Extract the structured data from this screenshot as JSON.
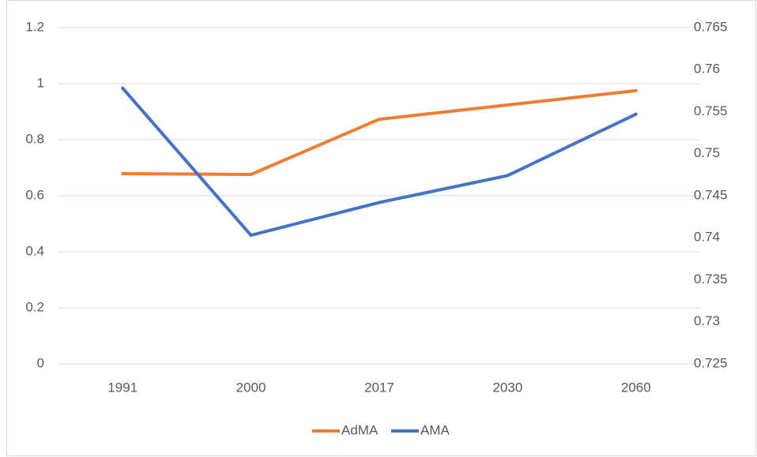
{
  "chart_data": {
    "type": "line",
    "categories": [
      "1991",
      "2000",
      "2017",
      "2030",
      "2060"
    ],
    "series": [
      {
        "name": "AdMA",
        "color": "#ed7d31",
        "values": [
          0.679,
          0.676,
          0.873,
          0.924,
          0.975
        ]
      },
      {
        "name": "AMA",
        "color": "#4472c4",
        "axis": "y2",
        "values": [
          0.7578,
          0.7403,
          0.7442,
          0.7474,
          0.7547
        ]
      }
    ],
    "ylim": [
      0,
      1.2
    ],
    "yticks": [
      0,
      0.2,
      0.4,
      0.6,
      0.8,
      1,
      1.2
    ],
    "y2lim": [
      0.725,
      0.765
    ],
    "y2ticks": [
      0.725,
      0.73,
      0.735,
      0.74,
      0.745,
      0.75,
      0.755,
      0.76,
      0.765
    ],
    "grid": true,
    "legend": "bottom"
  }
}
